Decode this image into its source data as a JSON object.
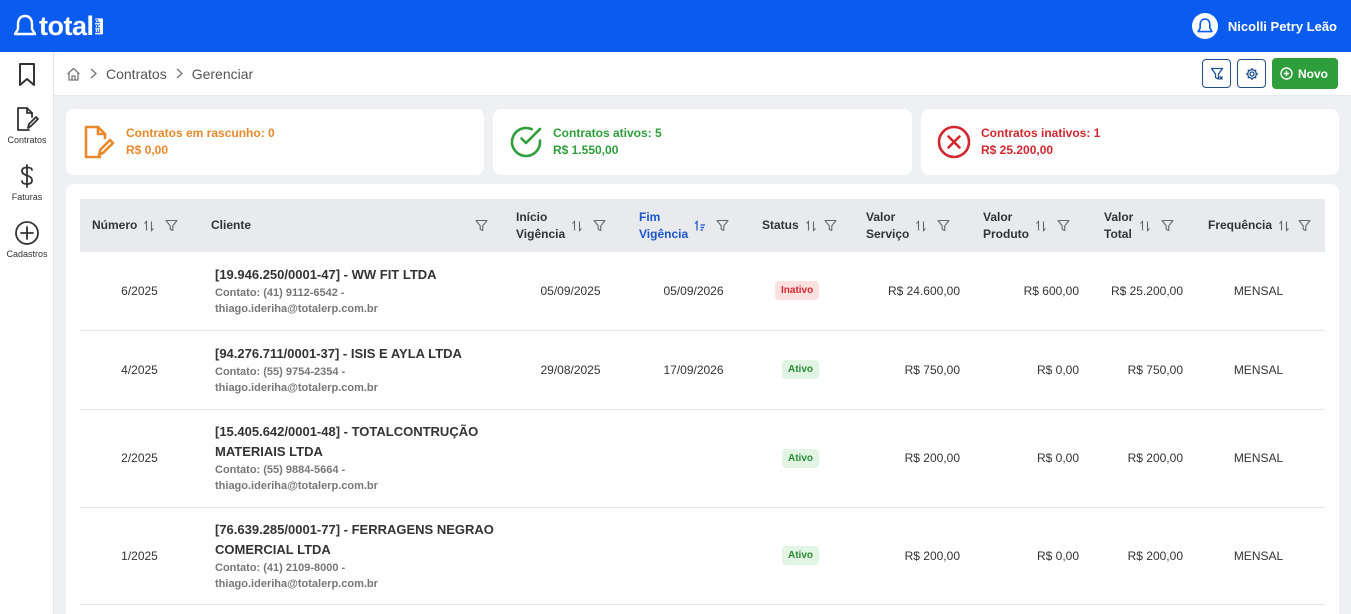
{
  "app": {
    "logo_text": "total",
    "logo_suffix": "ERP"
  },
  "user": {
    "name": "Nicolli Petry Leão"
  },
  "sidebar": {
    "items": [
      {
        "label": "",
        "icon": "bookmark-icon"
      },
      {
        "label": "Contratos",
        "icon": "contract-edit-icon"
      },
      {
        "label": "Faturas",
        "icon": "dollar-icon"
      },
      {
        "label": "Cadastros",
        "icon": "plus-circle-icon"
      }
    ]
  },
  "breadcrumb": {
    "items": [
      "Contratos",
      "Gerenciar"
    ]
  },
  "toolbar": {
    "new_label": "Novo"
  },
  "summary": {
    "draft": {
      "label": "Contratos em rascunho: 0",
      "value": "R$ 0,00",
      "color": "#e8892b"
    },
    "active": {
      "label": "Contratos ativos: 5",
      "value": "R$ 1.550,00",
      "color": "#2e9e3a"
    },
    "inactive": {
      "label": "Contratos inativos: 1",
      "value": "R$ 25.200,00",
      "color": "#d0282e"
    }
  },
  "table": {
    "headers": {
      "numero": "Número",
      "cliente": "Cliente",
      "inicio_1": "Início",
      "inicio_2": "Vigência",
      "fim_1": "Fim",
      "fim_2": "Vigência",
      "status": "Status",
      "vserv_1": "Valor",
      "vserv_2": "Serviço",
      "vprod_1": "Valor",
      "vprod_2": "Produto",
      "vtot_1": "Valor",
      "vtot_2": "Total",
      "freq": "Frequência"
    },
    "rows": [
      {
        "numero": "6/2025",
        "cliente": "[19.946.250/0001-47] - WW FIT LTDA",
        "contato_1": "Contato: (41) 9112-6542 -",
        "contato_2": "thiago.ideriha@totalerp.com.br",
        "inicio": "05/09/2025",
        "fim": "05/09/2026",
        "status": "Inativo",
        "valor_servico": "R$ 24.600,00",
        "valor_produto": "R$ 600,00",
        "valor_total": "R$ 25.200,00",
        "frequencia": "MENSAL"
      },
      {
        "numero": "4/2025",
        "cliente": "[94.276.711/0001-37] - ISIS E AYLA LTDA",
        "contato_1": "Contato: (55) 9754-2354 -",
        "contato_2": "thiago.ideriha@totalerp.com.br",
        "inicio": "29/08/2025",
        "fim": "17/09/2026",
        "status": "Ativo",
        "valor_servico": "R$ 750,00",
        "valor_produto": "R$ 0,00",
        "valor_total": "R$ 750,00",
        "frequencia": "MENSAL"
      },
      {
        "numero": "2/2025",
        "cliente_1": "[15.405.642/0001-48] - TOTALCONTRUÇÃO",
        "cliente_2": "MATERIAIS LTDA",
        "contato_1": "Contato: (55) 9884-5664 -",
        "contato_2": "thiago.ideriha@totalerp.com.br",
        "inicio": "",
        "fim": "",
        "status": "Ativo",
        "valor_servico": "R$ 200,00",
        "valor_produto": "R$ 0,00",
        "valor_total": "R$ 200,00",
        "frequencia": "MENSAL"
      },
      {
        "numero": "1/2025",
        "cliente_1": "[76.639.285/0001-77] - FERRAGENS NEGRAO",
        "cliente_2": "COMERCIAL LTDA",
        "contato_1": "Contato: (41) 2109-8000 -",
        "contato_2": "thiago.ideriha@totalerp.com.br",
        "inicio": "",
        "fim": "",
        "status": "Ativo",
        "valor_servico": "R$ 200,00",
        "valor_produto": "R$ 0,00",
        "valor_total": "R$ 200,00",
        "frequencia": "MENSAL"
      }
    ]
  },
  "colors": {
    "brand": "#0a5cf0",
    "success": "#2e9e3a",
    "danger": "#d0282e",
    "warning": "#e8892b"
  }
}
